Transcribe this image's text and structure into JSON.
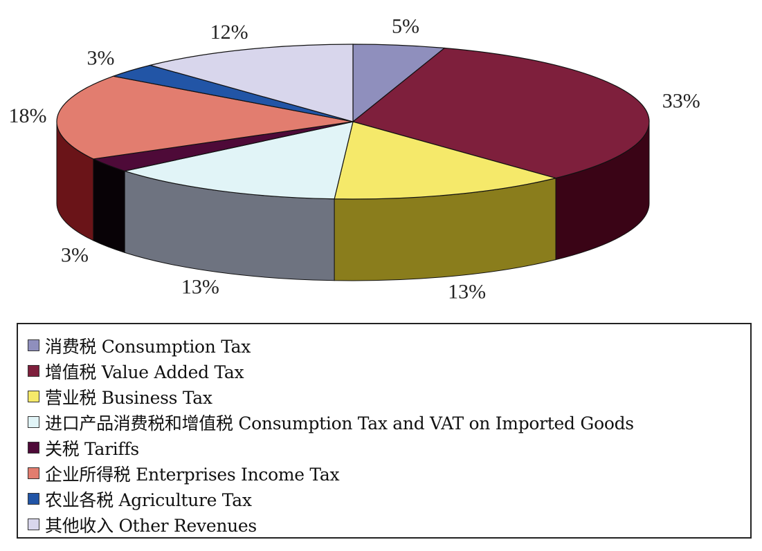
{
  "chart_data": {
    "type": "pie",
    "style": "3d-tilted",
    "slices": [
      {
        "label": "消费税 Consumption Tax",
        "value": 5,
        "display": "5%",
        "color": "#8f8fbd",
        "side_color": "#5a5a85"
      },
      {
        "label": "增值税 Value Added Tax",
        "value": 33,
        "display": "33%",
        "color": "#7e1f3c",
        "side_color": "#3a0416"
      },
      {
        "label": "营业税 Business Tax",
        "value": 13,
        "display": "13%",
        "color": "#f5e96a",
        "side_color": "#8a7d1c"
      },
      {
        "label": "进口产品消费税和增值税 Consumption Tax and VAT on Imported Goods",
        "value": 13,
        "display": "13%",
        "color": "#e1f4f7",
        "side_color": "#6e7380"
      },
      {
        "label": "关税 Tariffs",
        "value": 3,
        "display": "3%",
        "color": "#4e0a38",
        "side_color": "#080206"
      },
      {
        "label": "企业所得税 Enterprises Income Tax",
        "value": 18,
        "display": "18%",
        "color": "#e27d6f",
        "side_color": "#6a1418"
      },
      {
        "label": "农业各税 Agriculture Tax",
        "value": 3,
        "display": "3%",
        "color": "#2255a6",
        "side_color": "#0f2c5e"
      },
      {
        "label": "其他收入 Other Revenues",
        "value": 12,
        "display": "12%",
        "color": "#d8d6ec",
        "side_color": "#8c8aa8"
      }
    ],
    "start": "12 o'clock",
    "direction": "clockwise",
    "legend_position": "bottom"
  }
}
